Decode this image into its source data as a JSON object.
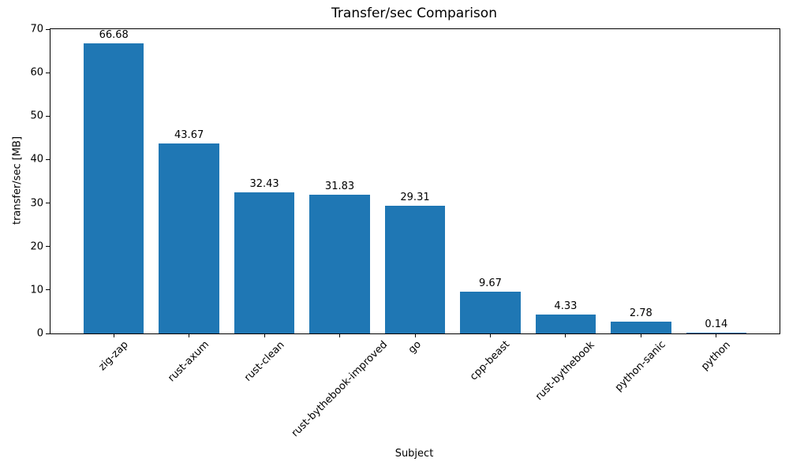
{
  "chart_data": {
    "type": "bar",
    "title": "Transfer/sec Comparison",
    "xlabel": "Subject",
    "ylabel": "transfer/sec [MB]",
    "categories": [
      "zig-zap",
      "rust-axum",
      "rust-clean",
      "rust-bythebook-improved",
      "go",
      "cpp-beast",
      "rust-bythebook",
      "python-sanic",
      "python"
    ],
    "values": [
      66.68,
      43.67,
      32.43,
      31.83,
      29.31,
      9.67,
      4.33,
      2.78,
      0.14
    ],
    "value_labels": [
      "66.68",
      "43.67",
      "32.43",
      "31.83",
      "29.31",
      "9.67",
      "4.33",
      "2.78",
      "0.14"
    ],
    "ylim": [
      0,
      70
    ],
    "yticks": [
      0,
      10,
      20,
      30,
      40,
      50,
      60,
      70
    ],
    "bar_color": "#1f77b4",
    "axis_color": "#000000",
    "background_color": "#ffffff",
    "grid": false,
    "legend": "none",
    "bar_width_fraction": 0.8
  }
}
